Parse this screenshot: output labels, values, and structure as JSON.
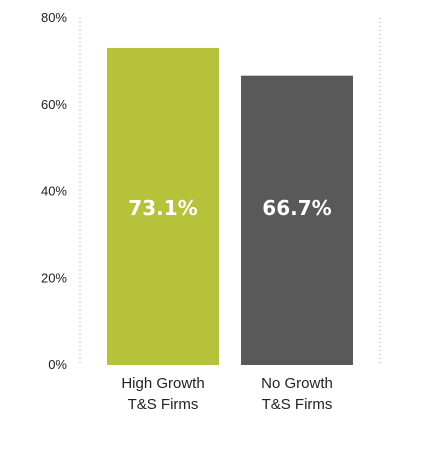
{
  "chart_data": {
    "type": "bar",
    "title": "",
    "xlabel": "",
    "ylabel": "",
    "ylim": [
      0,
      80
    ],
    "yticks": [
      {
        "value": 0,
        "label": "0%"
      },
      {
        "value": 20,
        "label": "20%"
      },
      {
        "value": 40,
        "label": "40%"
      },
      {
        "value": 60,
        "label": "60%"
      },
      {
        "value": 80,
        "label": "80%"
      }
    ],
    "categories": [
      {
        "line1": "High Growth",
        "line2": "T&S Firms"
      },
      {
        "line1": "No Growth",
        "line2": "T&S Firms"
      }
    ],
    "values": [
      73.1,
      66.7
    ],
    "data_labels": [
      "73.1%",
      "66.7%"
    ],
    "colors": [
      "#b5c23a",
      "#595959"
    ],
    "axis_color": "#aaaaaa",
    "grid": false,
    "legend": "none"
  }
}
